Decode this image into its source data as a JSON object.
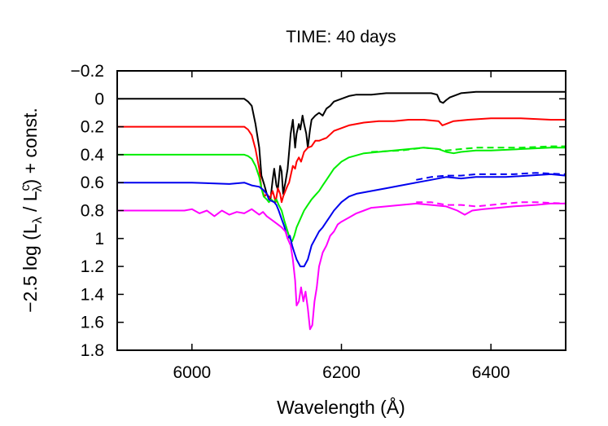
{
  "chart_data": {
    "type": "line",
    "title": "TIME: 40 days",
    "xlabel": "Wavelength (Å)",
    "ylabel_parts": {
      "prefix": "−2.5 log (L",
      "sub1": "λ",
      "mid": " / L",
      "sup2": "c",
      "sub2": "λ",
      "suffix": ") + const."
    },
    "xlim": [
      5900,
      6500
    ],
    "ylim": [
      -0.2,
      1.8
    ],
    "y_inverted": true,
    "xticks": [
      6000,
      6200,
      6400
    ],
    "yticks": [
      -0.2,
      0,
      0.2,
      0.4,
      0.6,
      0.8,
      1,
      1.2,
      1.4,
      1.6,
      1.8
    ],
    "ytick_labels": [
      "−0.2",
      "0",
      "0.2",
      "0.4",
      "0.6",
      "0.8",
      "1",
      "1.2",
      "1.4",
      "1.6",
      "1.8"
    ],
    "grid": false,
    "series": [
      {
        "color": "#000000",
        "style": "solid",
        "points": [
          [
            5900,
            0
          ],
          [
            6000,
            0
          ],
          [
            6060,
            0
          ],
          [
            6070,
            0
          ],
          [
            6075,
            0.02
          ],
          [
            6080,
            0.05
          ],
          [
            6085,
            0.18
          ],
          [
            6090,
            0.35
          ],
          [
            6093,
            0.55
          ],
          [
            6097,
            0.62
          ],
          [
            6100,
            0.68
          ],
          [
            6105,
            0.72
          ],
          [
            6108,
            0.58
          ],
          [
            6110,
            0.5
          ],
          [
            6113,
            0.62
          ],
          [
            6115,
            0.65
          ],
          [
            6118,
            0.48
          ],
          [
            6120,
            0.52
          ],
          [
            6122,
            0.68
          ],
          [
            6125,
            0.6
          ],
          [
            6128,
            0.5
          ],
          [
            6130,
            0.38
          ],
          [
            6132,
            0.25
          ],
          [
            6135,
            0.15
          ],
          [
            6138,
            0.35
          ],
          [
            6140,
            0.25
          ],
          [
            6143,
            0.18
          ],
          [
            6145,
            0.22
          ],
          [
            6148,
            0.12
          ],
          [
            6150,
            0.18
          ],
          [
            6153,
            0.25
          ],
          [
            6155,
            0.35
          ],
          [
            6158,
            0.22
          ],
          [
            6160,
            0.15
          ],
          [
            6165,
            0.12
          ],
          [
            6170,
            0.1
          ],
          [
            6175,
            0.12
          ],
          [
            6180,
            0.07
          ],
          [
            6185,
            0.05
          ],
          [
            6190,
            0.02
          ],
          [
            6200,
            0.0
          ],
          [
            6210,
            -0.02
          ],
          [
            6220,
            -0.03
          ],
          [
            6240,
            -0.03
          ],
          [
            6260,
            -0.04
          ],
          [
            6280,
            -0.04
          ],
          [
            6300,
            -0.04
          ],
          [
            6320,
            -0.04
          ],
          [
            6328,
            -0.03
          ],
          [
            6332,
            0.02
          ],
          [
            6336,
            0.03
          ],
          [
            6340,
            0.01
          ],
          [
            6345,
            -0.01
          ],
          [
            6360,
            -0.04
          ],
          [
            6380,
            -0.05
          ],
          [
            6400,
            -0.05
          ],
          [
            6440,
            -0.05
          ],
          [
            6480,
            -0.05
          ],
          [
            6500,
            -0.05
          ]
        ]
      },
      {
        "color": "#ff0000",
        "style": "solid",
        "points": [
          [
            5900,
            0.2
          ],
          [
            6000,
            0.2
          ],
          [
            6065,
            0.2
          ],
          [
            6070,
            0.2
          ],
          [
            6075,
            0.22
          ],
          [
            6080,
            0.26
          ],
          [
            6085,
            0.36
          ],
          [
            6090,
            0.5
          ],
          [
            6093,
            0.64
          ],
          [
            6097,
            0.7
          ],
          [
            6100,
            0.68
          ],
          [
            6103,
            0.72
          ],
          [
            6105,
            0.7
          ],
          [
            6108,
            0.66
          ],
          [
            6110,
            0.7
          ],
          [
            6112,
            0.74
          ],
          [
            6115,
            0.64
          ],
          [
            6118,
            0.68
          ],
          [
            6120,
            0.74
          ],
          [
            6122,
            0.7
          ],
          [
            6125,
            0.66
          ],
          [
            6128,
            0.62
          ],
          [
            6130,
            0.6
          ],
          [
            6132,
            0.55
          ],
          [
            6135,
            0.48
          ],
          [
            6138,
            0.5
          ],
          [
            6140,
            0.45
          ],
          [
            6143,
            0.42
          ],
          [
            6146,
            0.45
          ],
          [
            6150,
            0.38
          ],
          [
            6155,
            0.35
          ],
          [
            6160,
            0.34
          ],
          [
            6165,
            0.3
          ],
          [
            6170,
            0.3
          ],
          [
            6175,
            0.29
          ],
          [
            6180,
            0.28
          ],
          [
            6190,
            0.23
          ],
          [
            6200,
            0.21
          ],
          [
            6210,
            0.19
          ],
          [
            6230,
            0.17
          ],
          [
            6250,
            0.16
          ],
          [
            6270,
            0.16
          ],
          [
            6290,
            0.15
          ],
          [
            6310,
            0.15
          ],
          [
            6330,
            0.16
          ],
          [
            6335,
            0.19
          ],
          [
            6340,
            0.18
          ],
          [
            6350,
            0.16
          ],
          [
            6370,
            0.15
          ],
          [
            6400,
            0.14
          ],
          [
            6440,
            0.14
          ],
          [
            6480,
            0.15
          ],
          [
            6500,
            0.15
          ]
        ]
      },
      {
        "color": "#00ee00",
        "style": "solid",
        "points": [
          [
            5900,
            0.4
          ],
          [
            6000,
            0.4
          ],
          [
            6060,
            0.4
          ],
          [
            6070,
            0.4
          ],
          [
            6075,
            0.41
          ],
          [
            6080,
            0.43
          ],
          [
            6085,
            0.48
          ],
          [
            6090,
            0.56
          ],
          [
            6093,
            0.64
          ],
          [
            6096,
            0.7
          ],
          [
            6100,
            0.72
          ],
          [
            6103,
            0.74
          ],
          [
            6106,
            0.72
          ],
          [
            6110,
            0.74
          ],
          [
            6113,
            0.72
          ],
          [
            6116,
            0.76
          ],
          [
            6120,
            0.8
          ],
          [
            6124,
            0.88
          ],
          [
            6128,
            0.95
          ],
          [
            6131,
            1.0
          ],
          [
            6134,
            1.02
          ],
          [
            6137,
            0.98
          ],
          [
            6140,
            0.92
          ],
          [
            6145,
            0.86
          ],
          [
            6150,
            0.8
          ],
          [
            6155,
            0.76
          ],
          [
            6160,
            0.72
          ],
          [
            6165,
            0.69
          ],
          [
            6170,
            0.66
          ],
          [
            6175,
            0.62
          ],
          [
            6180,
            0.58
          ],
          [
            6190,
            0.5
          ],
          [
            6200,
            0.45
          ],
          [
            6210,
            0.42
          ],
          [
            6230,
            0.39
          ],
          [
            6250,
            0.38
          ],
          [
            6270,
            0.37
          ],
          [
            6290,
            0.36
          ],
          [
            6310,
            0.35
          ],
          [
            6330,
            0.36
          ],
          [
            6340,
            0.38
          ],
          [
            6350,
            0.39
          ],
          [
            6360,
            0.38
          ],
          [
            6380,
            0.37
          ],
          [
            6400,
            0.37
          ],
          [
            6440,
            0.36
          ],
          [
            6480,
            0.35
          ],
          [
            6500,
            0.35
          ]
        ]
      },
      {
        "color": "#00ee00",
        "style": "dashed",
        "points": [
          [
            6240,
            0.38
          ],
          [
            6280,
            0.37
          ],
          [
            6310,
            0.35
          ],
          [
            6330,
            0.36
          ],
          [
            6340,
            0.37
          ],
          [
            6360,
            0.36
          ],
          [
            6380,
            0.35
          ],
          [
            6400,
            0.35
          ],
          [
            6440,
            0.35
          ],
          [
            6480,
            0.34
          ],
          [
            6500,
            0.34
          ]
        ]
      },
      {
        "color": "#0000ee",
        "style": "solid",
        "points": [
          [
            5900,
            0.6
          ],
          [
            5950,
            0.6
          ],
          [
            6000,
            0.6
          ],
          [
            6050,
            0.61
          ],
          [
            6070,
            0.6
          ],
          [
            6080,
            0.62
          ],
          [
            6090,
            0.63
          ],
          [
            6095,
            0.65
          ],
          [
            6100,
            0.68
          ],
          [
            6103,
            0.72
          ],
          [
            6106,
            0.73
          ],
          [
            6110,
            0.74
          ],
          [
            6113,
            0.76
          ],
          [
            6116,
            0.8
          ],
          [
            6120,
            0.86
          ],
          [
            6124,
            0.92
          ],
          [
            6128,
            1.0
          ],
          [
            6131,
            0.98
          ],
          [
            6134,
            1.05
          ],
          [
            6137,
            1.1
          ],
          [
            6140,
            1.15
          ],
          [
            6145,
            1.2
          ],
          [
            6150,
            1.2
          ],
          [
            6155,
            1.15
          ],
          [
            6160,
            1.05
          ],
          [
            6165,
            1.0
          ],
          [
            6170,
            0.95
          ],
          [
            6175,
            0.92
          ],
          [
            6180,
            0.88
          ],
          [
            6185,
            0.84
          ],
          [
            6190,
            0.8
          ],
          [
            6200,
            0.74
          ],
          [
            6210,
            0.7
          ],
          [
            6220,
            0.68
          ],
          [
            6240,
            0.66
          ],
          [
            6260,
            0.64
          ],
          [
            6280,
            0.62
          ],
          [
            6300,
            0.6
          ],
          [
            6320,
            0.58
          ],
          [
            6340,
            0.56
          ],
          [
            6360,
            0.57
          ],
          [
            6380,
            0.56
          ],
          [
            6400,
            0.56
          ],
          [
            6420,
            0.56
          ],
          [
            6450,
            0.55
          ],
          [
            6480,
            0.54
          ],
          [
            6500,
            0.55
          ]
        ]
      },
      {
        "color": "#0000ee",
        "style": "dashed",
        "points": [
          [
            6300,
            0.58
          ],
          [
            6320,
            0.56
          ],
          [
            6340,
            0.55
          ],
          [
            6360,
            0.55
          ],
          [
            6380,
            0.54
          ],
          [
            6400,
            0.54
          ],
          [
            6430,
            0.54
          ],
          [
            6460,
            0.53
          ],
          [
            6500,
            0.54
          ]
        ]
      },
      {
        "color": "#ff00ff",
        "style": "solid",
        "points": [
          [
            5900,
            0.8
          ],
          [
            5950,
            0.8
          ],
          [
            5990,
            0.8
          ],
          [
            6000,
            0.79
          ],
          [
            6010,
            0.82
          ],
          [
            6020,
            0.8
          ],
          [
            6030,
            0.84
          ],
          [
            6040,
            0.8
          ],
          [
            6050,
            0.83
          ],
          [
            6060,
            0.81
          ],
          [
            6070,
            0.82
          ],
          [
            6080,
            0.79
          ],
          [
            6090,
            0.83
          ],
          [
            6095,
            0.81
          ],
          [
            6100,
            0.84
          ],
          [
            6105,
            0.86
          ],
          [
            6110,
            0.88
          ],
          [
            6115,
            0.9
          ],
          [
            6120,
            0.92
          ],
          [
            6125,
            0.95
          ],
          [
            6128,
            1.0
          ],
          [
            6132,
            1.05
          ],
          [
            6135,
            1.15
          ],
          [
            6138,
            1.3
          ],
          [
            6140,
            1.48
          ],
          [
            6143,
            1.45
          ],
          [
            6146,
            1.35
          ],
          [
            6149,
            1.45
          ],
          [
            6152,
            1.38
          ],
          [
            6155,
            1.5
          ],
          [
            6158,
            1.65
          ],
          [
            6161,
            1.62
          ],
          [
            6164,
            1.45
          ],
          [
            6167,
            1.35
          ],
          [
            6170,
            1.2
          ],
          [
            6175,
            1.1
          ],
          [
            6180,
            1.05
          ],
          [
            6185,
            0.98
          ],
          [
            6190,
            0.95
          ],
          [
            6195,
            0.9
          ],
          [
            6200,
            0.88
          ],
          [
            6210,
            0.85
          ],
          [
            6220,
            0.82
          ],
          [
            6230,
            0.8
          ],
          [
            6240,
            0.78
          ],
          [
            6260,
            0.77
          ],
          [
            6280,
            0.76
          ],
          [
            6300,
            0.75
          ],
          [
            6320,
            0.76
          ],
          [
            6340,
            0.77
          ],
          [
            6355,
            0.8
          ],
          [
            6365,
            0.83
          ],
          [
            6375,
            0.8
          ],
          [
            6390,
            0.79
          ],
          [
            6410,
            0.78
          ],
          [
            6430,
            0.77
          ],
          [
            6460,
            0.76
          ],
          [
            6480,
            0.75
          ],
          [
            6500,
            0.75
          ]
        ]
      },
      {
        "color": "#ff00ff",
        "style": "dashed",
        "points": [
          [
            6300,
            0.74
          ],
          [
            6320,
            0.74
          ],
          [
            6340,
            0.76
          ],
          [
            6360,
            0.76
          ],
          [
            6380,
            0.77
          ],
          [
            6400,
            0.76
          ],
          [
            6420,
            0.75
          ],
          [
            6440,
            0.74
          ],
          [
            6460,
            0.74
          ],
          [
            6500,
            0.75
          ]
        ]
      }
    ]
  }
}
